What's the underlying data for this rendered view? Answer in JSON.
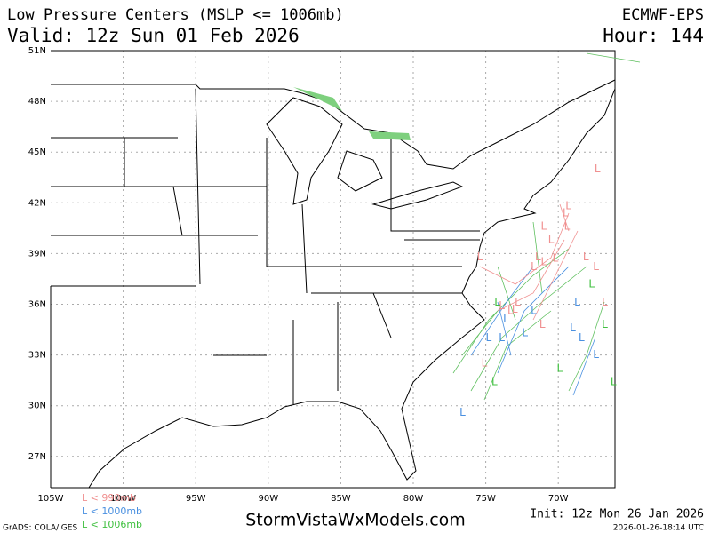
{
  "header": {
    "title": "Low Pressure Centers (MSLP <= 1006mb)",
    "model": "ECMWF-EPS",
    "valid": "Valid: 12z Sun 01 Feb 2026",
    "hour": "Hour: 144"
  },
  "axes": {
    "lat_labels": [
      "51N",
      "48N",
      "45N",
      "42N",
      "39N",
      "36N",
      "33N",
      "30N",
      "27N"
    ],
    "lon_labels": [
      "105W",
      "100W",
      "95W",
      "90W",
      "85W",
      "80W",
      "75W",
      "70W"
    ]
  },
  "legend": [
    {
      "text": "L < 990mb",
      "color": "#f09090"
    },
    {
      "text": "L < 1000mb",
      "color": "#4a90e0"
    },
    {
      "text": "L < 1006mb",
      "color": "#40c040"
    }
  ],
  "markers": [
    {
      "text": "L",
      "kind": 0,
      "lon": -67.3,
      "lat": 44.0
    },
    {
      "text": "L",
      "kind": 0,
      "lon": -69.3,
      "lat": 41.8
    },
    {
      "text": "L",
      "kind": 0,
      "lon": -69.5,
      "lat": 41.4
    },
    {
      "text": "L",
      "kind": 0,
      "lon": -71.0,
      "lat": 40.6
    },
    {
      "text": "L",
      "kind": 0,
      "lon": -69.4,
      "lat": 40.6
    },
    {
      "text": "L",
      "kind": 0,
      "lon": -70.5,
      "lat": 39.8
    },
    {
      "text": "L",
      "kind": 0,
      "lon": -71.4,
      "lat": 38.8
    },
    {
      "text": "L",
      "kind": 0,
      "lon": -71.0,
      "lat": 38.5
    },
    {
      "text": "L",
      "kind": 0,
      "lon": -70.2,
      "lat": 38.7
    },
    {
      "text": "L",
      "kind": 0,
      "lon": -71.7,
      "lat": 38.2
    },
    {
      "text": "L",
      "kind": 0,
      "lon": -68.1,
      "lat": 38.8
    },
    {
      "text": "L",
      "kind": 0,
      "lon": -67.4,
      "lat": 38.2
    },
    {
      "text": "L",
      "kind": 0,
      "lon": -73.9,
      "lat": 35.9
    },
    {
      "text": "L",
      "kind": 0,
      "lon": -73.3,
      "lat": 35.6
    },
    {
      "text": "L",
      "kind": 0,
      "lon": -73.0,
      "lat": 35.7
    },
    {
      "text": "L",
      "kind": 0,
      "lon": -71.1,
      "lat": 34.8
    },
    {
      "text": "L",
      "kind": 0,
      "lon": -66.8,
      "lat": 36.1
    },
    {
      "text": "L",
      "kind": 0,
      "lon": -75.4,
      "lat": 38.8
    },
    {
      "text": "L",
      "kind": 0,
      "lon": -75.1,
      "lat": 32.5
    },
    {
      "text": "L",
      "kind": 0,
      "lon": -72.8,
      "lat": 36.1
    },
    {
      "text": "L",
      "kind": 1,
      "lon": -73.6,
      "lat": 35.1
    },
    {
      "text": "L",
      "kind": 1,
      "lon": -72.3,
      "lat": 34.3
    },
    {
      "text": "L",
      "kind": 1,
      "lon": -69.0,
      "lat": 34.6
    },
    {
      "text": "L",
      "kind": 1,
      "lon": -68.4,
      "lat": 34.0
    },
    {
      "text": "L",
      "kind": 1,
      "lon": -67.4,
      "lat": 33.0
    },
    {
      "text": "L",
      "kind": 1,
      "lon": -76.6,
      "lat": 29.6
    },
    {
      "text": "L",
      "kind": 1,
      "lon": -71.7,
      "lat": 35.6
    },
    {
      "text": "L",
      "kind": 1,
      "lon": -74.8,
      "lat": 34.0
    },
    {
      "text": "L",
      "kind": 1,
      "lon": -73.9,
      "lat": 34.0
    },
    {
      "text": "L",
      "kind": 1,
      "lon": -68.7,
      "lat": 36.1
    },
    {
      "text": "L",
      "kind": 2,
      "lon": -67.7,
      "lat": 37.2
    },
    {
      "text": "L",
      "kind": 2,
      "lon": -66.2,
      "lat": 31.4
    },
    {
      "text": "L",
      "kind": 2,
      "lon": -74.4,
      "lat": 31.4
    },
    {
      "text": "L",
      "kind": 2,
      "lon": -69.9,
      "lat": 32.2
    },
    {
      "text": "L",
      "kind": 2,
      "lon": -66.8,
      "lat": 34.8
    },
    {
      "text": "L",
      "kind": 2,
      "lon": -74.2,
      "lat": 36.1
    }
  ],
  "footer": {
    "grads": "GrADS: COLA/IGES",
    "site": "StormVistaWxModels.com",
    "init": "Init: 12z Mon 26 Jan 2026",
    "stamp": "2026-01-26-18:14 UTC"
  }
}
